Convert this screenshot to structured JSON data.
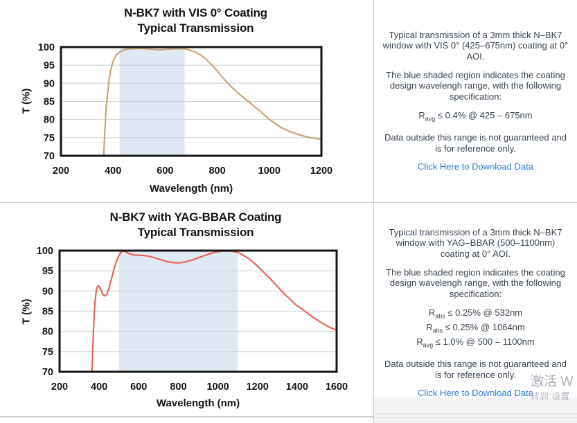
{
  "colors": {
    "link": "#2E78D6",
    "body_text": "#394552",
    "shade_blue": "#DEE9F4",
    "curve_vis": "#C8A475",
    "curve_yag": "#EB6357",
    "grid": "#CFD3D6",
    "plot_border": "#141414"
  },
  "chart_data": [
    {
      "type": "line",
      "title_line1": "N-BK7 with VIS 0° Coating",
      "title_line2": "Typical Transmission",
      "xlabel": "Wavelength (nm)",
      "ylabel": "T (%)",
      "xlim": [
        200,
        1200
      ],
      "ylim": [
        70,
        100
      ],
      "xticks": [
        200,
        400,
        600,
        800,
        1000,
        1200
      ],
      "yticks": [
        70,
        75,
        80,
        85,
        90,
        95,
        100
      ],
      "grid": "horizontal",
      "shaded_region": [
        425,
        675
      ],
      "shade_color": "#DEE9F4",
      "line_color": "#C8A475",
      "points": [
        [
          361,
          64
        ],
        [
          364,
          70
        ],
        [
          368,
          76
        ],
        [
          372,
          81.5
        ],
        [
          377,
          86
        ],
        [
          383,
          90
        ],
        [
          390,
          93.2
        ],
        [
          398,
          95.6
        ],
        [
          406,
          97
        ],
        [
          415,
          98
        ],
        [
          425,
          98.6
        ],
        [
          438,
          99.1
        ],
        [
          452,
          99.4
        ],
        [
          470,
          99.55
        ],
        [
          495,
          99.6
        ],
        [
          520,
          99.6
        ],
        [
          545,
          99.45
        ],
        [
          565,
          99.3
        ],
        [
          590,
          99.3
        ],
        [
          615,
          99.45
        ],
        [
          640,
          99.55
        ],
        [
          662,
          99.6
        ],
        [
          678,
          99.5
        ],
        [
          692,
          99.25
        ],
        [
          708,
          98.85
        ],
        [
          722,
          98.4
        ],
        [
          738,
          97.7
        ],
        [
          755,
          96.8
        ],
        [
          770,
          95.7
        ],
        [
          785,
          94.6
        ],
        [
          800,
          93.4
        ],
        [
          815,
          92.1
        ],
        [
          830,
          90.8
        ],
        [
          845,
          89.7
        ],
        [
          862,
          88.5
        ],
        [
          880,
          87.3
        ],
        [
          900,
          86.1
        ],
        [
          920,
          85
        ],
        [
          942,
          83.6
        ],
        [
          962,
          82.5
        ],
        [
          982,
          81.2
        ],
        [
          1000,
          80.1
        ],
        [
          1022,
          78.9
        ],
        [
          1045,
          77.8
        ],
        [
          1068,
          77
        ],
        [
          1090,
          76.4
        ],
        [
          1115,
          75.8
        ],
        [
          1140,
          75.3
        ],
        [
          1165,
          74.9
        ],
        [
          1185,
          74.7
        ],
        [
          1200,
          74.5
        ]
      ]
    },
    {
      "type": "line",
      "title_line1": "N-BK7 with YAG-BBAR Coating",
      "title_line2": "Typical Transmission",
      "xlabel": "Wavelength (nm)",
      "ylabel": "T (%)",
      "xlim": [
        200,
        1600
      ],
      "ylim": [
        70,
        100
      ],
      "xticks": [
        200,
        400,
        600,
        800,
        1000,
        1200,
        1400,
        1600
      ],
      "yticks": [
        70,
        75,
        80,
        85,
        90,
        95,
        100
      ],
      "grid": "horizontal",
      "shaded_region": [
        500,
        1100
      ],
      "shade_color": "#DEE9F4",
      "line_color": "#EB6357",
      "points": [
        [
          361,
          64
        ],
        [
          364,
          70
        ],
        [
          367,
          75
        ],
        [
          371,
          80
        ],
        [
          375,
          84
        ],
        [
          379,
          87
        ],
        [
          384,
          89.6
        ],
        [
          389,
          90.9
        ],
        [
          395,
          91.3
        ],
        [
          401,
          91.1
        ],
        [
          408,
          90.3
        ],
        [
          416,
          89.4
        ],
        [
          424,
          88.9
        ],
        [
          432,
          88.8
        ],
        [
          440,
          89.4
        ],
        [
          448,
          90.5
        ],
        [
          458,
          92.2
        ],
        [
          468,
          94.1
        ],
        [
          478,
          95.9
        ],
        [
          488,
          97.4
        ],
        [
          498,
          98.6
        ],
        [
          508,
          99.4
        ],
        [
          517,
          99.8
        ],
        [
          525,
          99.9
        ],
        [
          535,
          99.7
        ],
        [
          548,
          99.3
        ],
        [
          562,
          99.05
        ],
        [
          580,
          98.9
        ],
        [
          600,
          98.85
        ],
        [
          622,
          98.8
        ],
        [
          642,
          98.7
        ],
        [
          662,
          98.5
        ],
        [
          682,
          98.2
        ],
        [
          702,
          97.9
        ],
        [
          722,
          97.6
        ],
        [
          742,
          97.3
        ],
        [
          762,
          97.1
        ],
        [
          782,
          97
        ],
        [
          800,
          96.95
        ],
        [
          820,
          97.05
        ],
        [
          842,
          97.3
        ],
        [
          865,
          97.6
        ],
        [
          890,
          98
        ],
        [
          915,
          98.45
        ],
        [
          940,
          98.9
        ],
        [
          965,
          99.3
        ],
        [
          988,
          99.6
        ],
        [
          1010,
          99.8
        ],
        [
          1032,
          99.9
        ],
        [
          1055,
          99.9
        ],
        [
          1075,
          99.85
        ],
        [
          1095,
          99.6
        ],
        [
          1112,
          99.3
        ],
        [
          1130,
          98.8
        ],
        [
          1150,
          98.2
        ],
        [
          1172,
          97.4
        ],
        [
          1195,
          96.4
        ],
        [
          1218,
          95.3
        ],
        [
          1242,
          94.1
        ],
        [
          1266,
          92.9
        ],
        [
          1290,
          91.7
        ],
        [
          1314,
          90.4
        ],
        [
          1338,
          89.2
        ],
        [
          1360,
          88.2
        ],
        [
          1380,
          87.2
        ],
        [
          1398,
          86.4
        ],
        [
          1415,
          85.9
        ],
        [
          1445,
          84.8
        ],
        [
          1475,
          83.7
        ],
        [
          1505,
          82.7
        ],
        [
          1535,
          81.8
        ],
        [
          1565,
          81
        ],
        [
          1585,
          80.6
        ],
        [
          1600,
          80.3
        ]
      ]
    }
  ],
  "panels": [
    {
      "para1": "Typical transmission of a 3mm thick N–BK7 window with VIS 0° (425–675nm) coating at 0° AOI.",
      "para2": "The blue shaded region indicates the coating design wavelengh range, with the following specification:",
      "specs": [
        {
          "base": "R",
          "sub": "avg",
          "rest": " ≤ 0.4% @ 425 – 675nm"
        }
      ],
      "para3": "Data outside this range is not guaranteed and is for reference only.",
      "link": "Click Here to Download Data"
    },
    {
      "para1": "Typical transmission of a 3mm thick N–BK7 window with YAG–BBAR (500–1100nm) coating at 0° AOI.",
      "para2": "The blue shaded region indicates the coating design wavelengh range, with the following specification:",
      "specs": [
        {
          "base": "R",
          "sub": "abs",
          "rest": " ≤ 0.25% @ 532nm"
        },
        {
          "base": "R",
          "sub": "abs",
          "rest": " ≤ 0.25% @ 1064nm"
        },
        {
          "base": "R",
          "sub": "avg",
          "rest": " ≤ 1.0% @ 500 – 1100nm"
        }
      ],
      "para3": "Data outside this range is not guaranteed and is for reference only.",
      "link": "Click Here to Download Data"
    }
  ],
  "watermark": {
    "line1": "激活 W",
    "line2": "转到“设置"
  }
}
